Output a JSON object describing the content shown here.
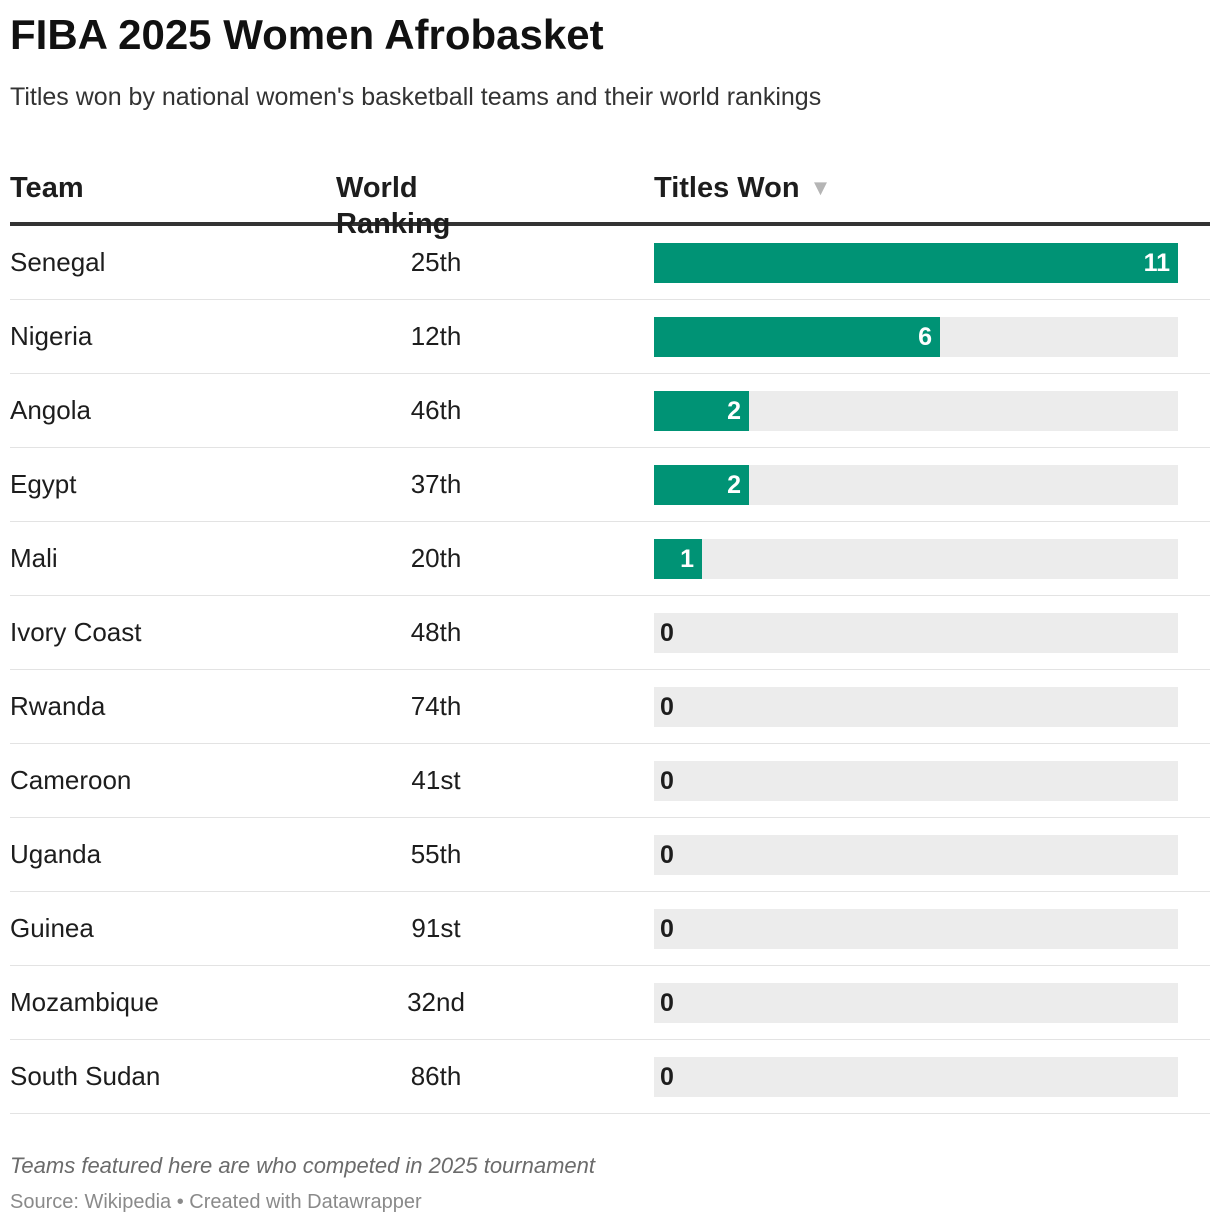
{
  "chart_data": {
    "type": "table",
    "title": "FIBA 2025 Women Afrobasket",
    "subtitle": "Titles won by national women's basketball teams and their world rankings",
    "columns": {
      "team": "Team",
      "ranking": "World Ranking",
      "titles": "Titles Won"
    },
    "sort": {
      "column": "titles",
      "direction": "descending"
    },
    "bar_max": 11,
    "rows": [
      {
        "team": "Senegal",
        "ranking": "25th",
        "titles": 11
      },
      {
        "team": "Nigeria",
        "ranking": "12th",
        "titles": 6
      },
      {
        "team": "Angola",
        "ranking": "46th",
        "titles": 2
      },
      {
        "team": "Egypt",
        "ranking": "37th",
        "titles": 2
      },
      {
        "team": "Mali",
        "ranking": "20th",
        "titles": 1
      },
      {
        "team": "Ivory Coast",
        "ranking": "48th",
        "titles": 0
      },
      {
        "team": "Rwanda",
        "ranking": "74th",
        "titles": 0
      },
      {
        "team": "Cameroon",
        "ranking": "41st",
        "titles": 0
      },
      {
        "team": "Uganda",
        "ranking": "55th",
        "titles": 0
      },
      {
        "team": "Guinea",
        "ranking": "91st",
        "titles": 0
      },
      {
        "team": "Mozambique",
        "ranking": "32nd",
        "titles": 0
      },
      {
        "team": "South Sudan",
        "ranking": "86th",
        "titles": 0
      }
    ],
    "note": "Teams featured here are who competed in 2025 tournament",
    "source": "Source: Wikipedia • Created with Datawrapper",
    "colors": {
      "bar": "#009375",
      "track": "#ececec",
      "header_rule": "#333333",
      "sort_icon": "#b5b5b5"
    }
  }
}
